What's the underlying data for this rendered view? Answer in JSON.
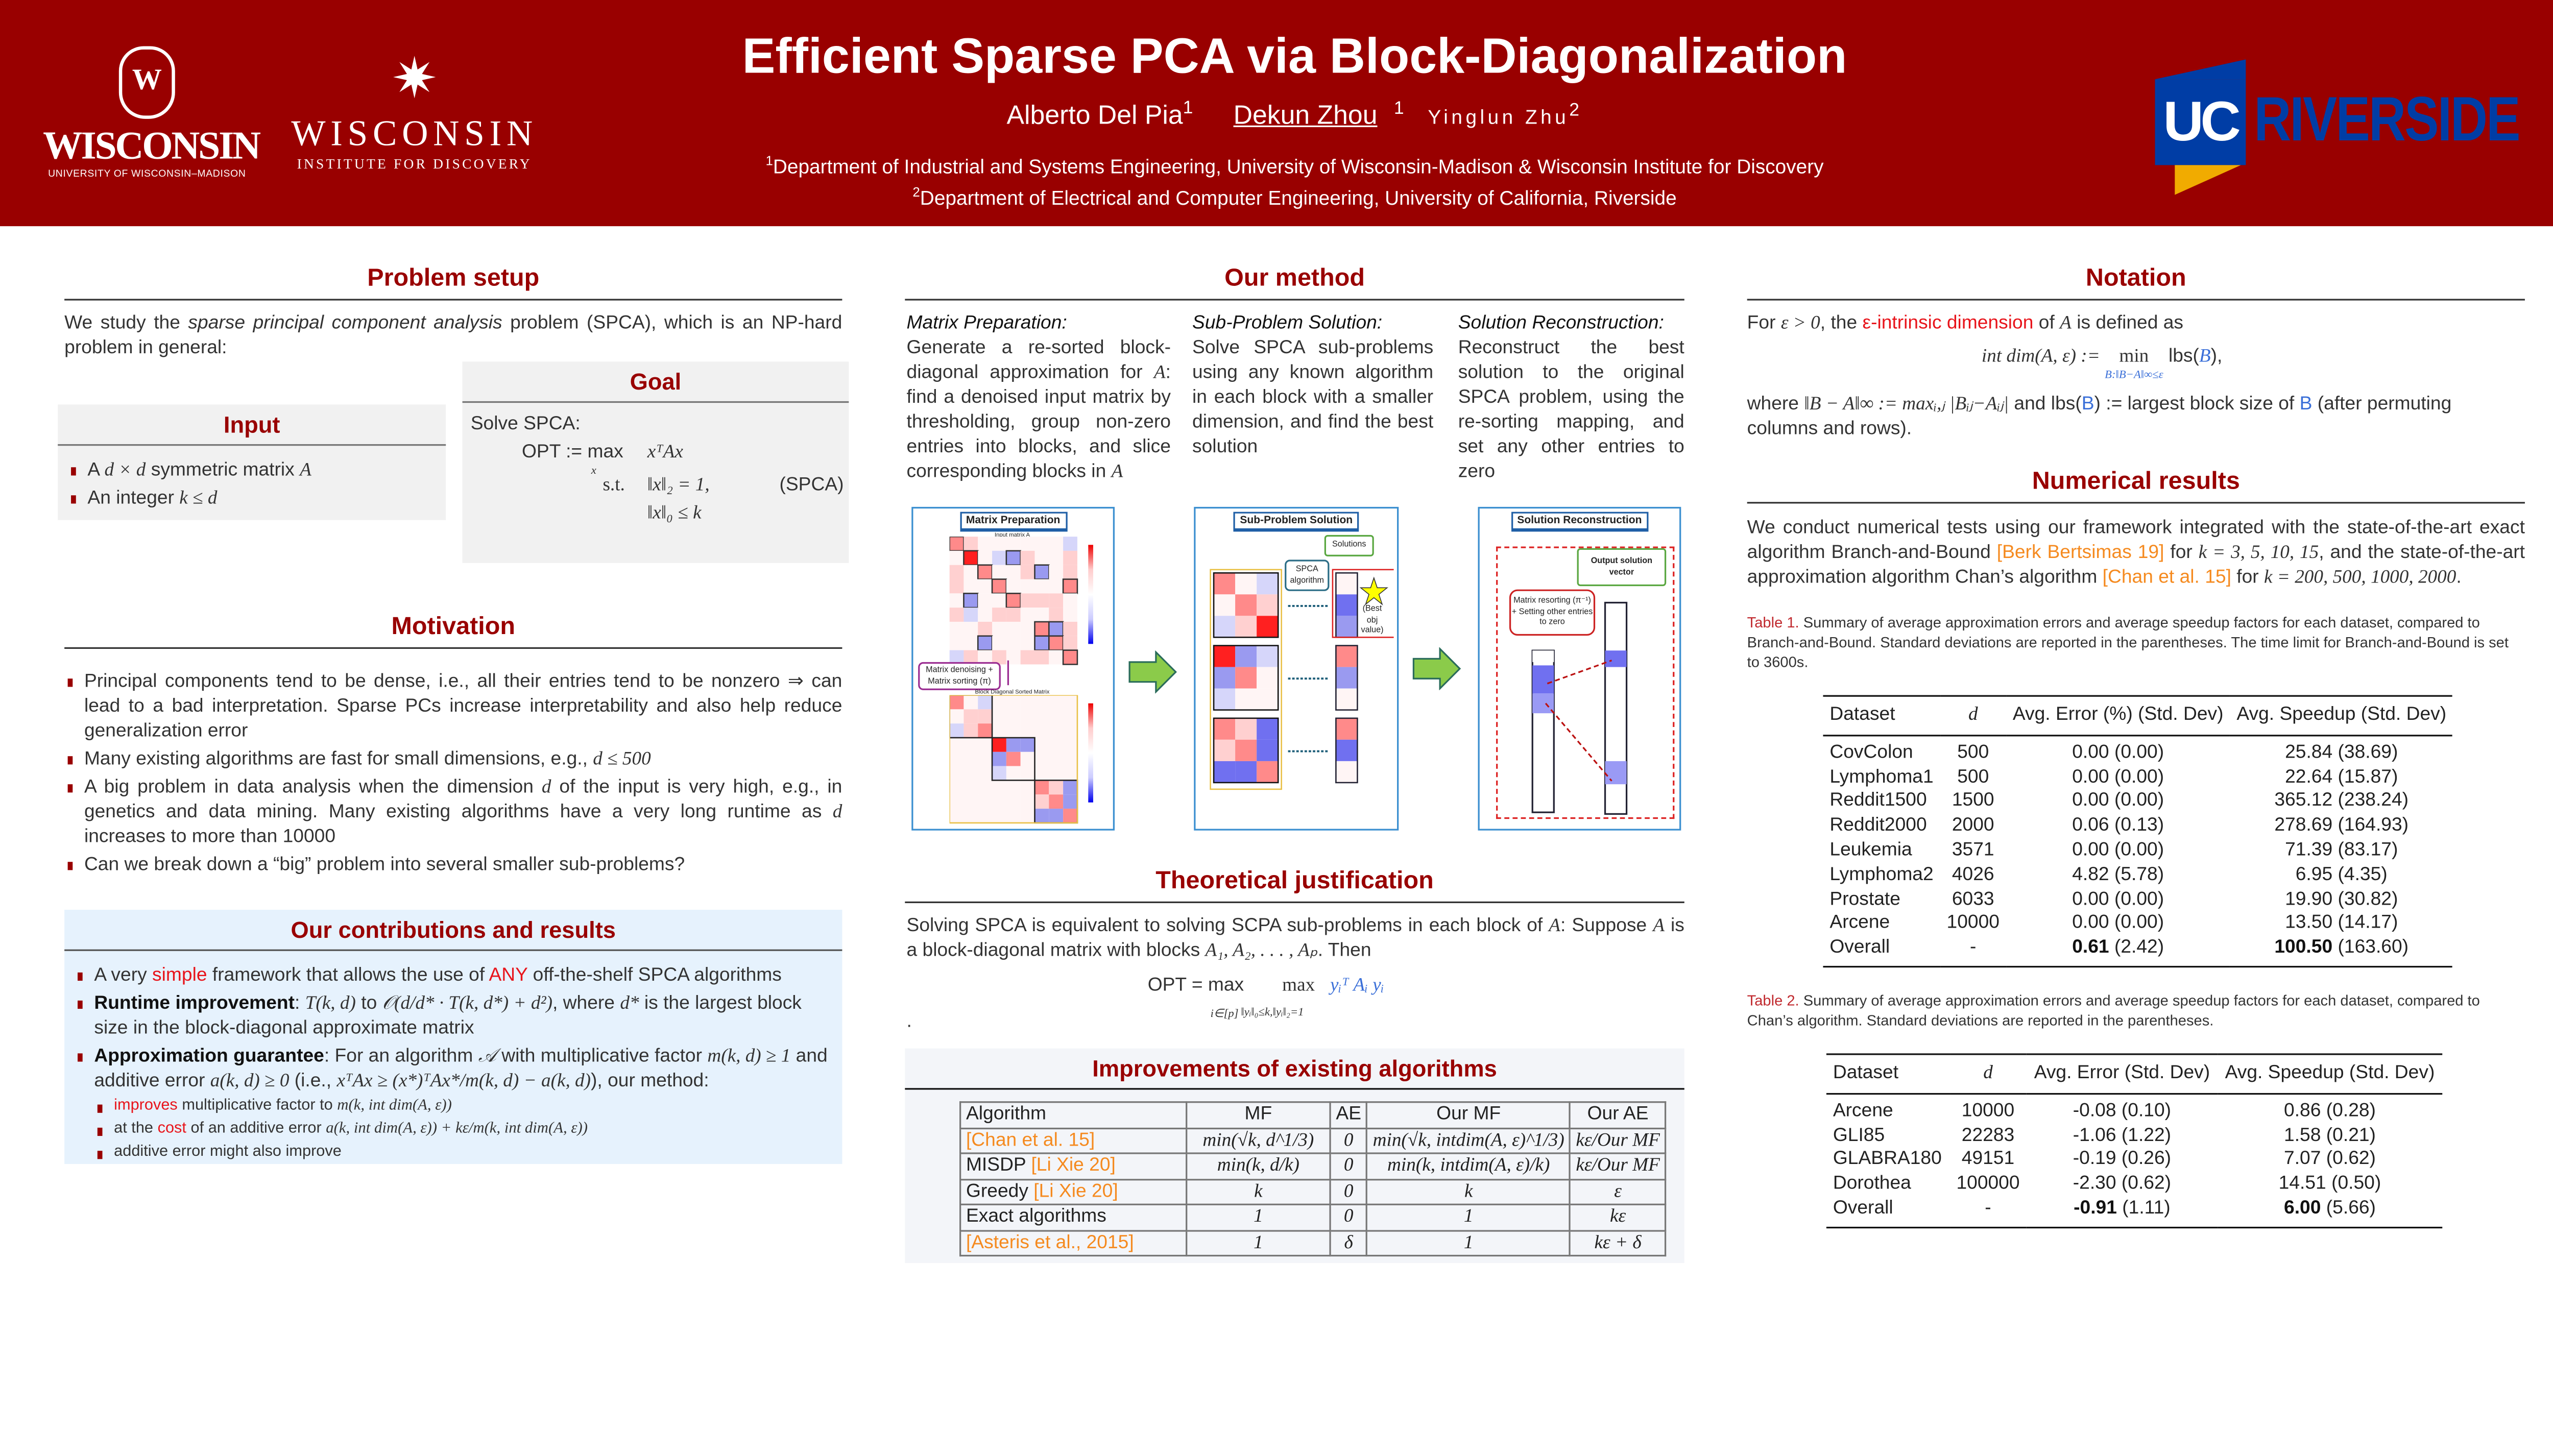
{
  "header": {
    "title": "Efficient Sparse PCA via Block-Diagonalization",
    "authors": [
      {
        "name": "Alberto Del Pia",
        "sup": "1"
      },
      {
        "name": "Dekun Zhou",
        "sup": "1"
      },
      {
        "name": "Yinglun Zhu",
        "sup": "2"
      }
    ],
    "affiliations": [
      {
        "sup": "1",
        "text": "Department of Industrial and Systems Engineering, University of Wisconsin-Madison & Wisconsin Institute for Discovery"
      },
      {
        "sup": "2",
        "text": "Department of Electrical and Computer Engineering, University of California, Riverside"
      }
    ],
    "logos": {
      "uw_crest": "W",
      "uw_name": "WISCONSIN",
      "uw_sub": "UNIVERSITY OF WISCONSIN–MADISON",
      "wid_star": "✷",
      "wid_name": "WISCONSIN",
      "wid_sub": "INSTITUTE FOR DISCOVERY",
      "ucr_uc": "UC",
      "ucr_name": "RIVERSIDE"
    },
    "colors": {
      "banner": "#990000",
      "ucr_blue": "#003da5",
      "ucr_gold": "#f1ab00"
    }
  },
  "problem_setup": {
    "title": "Problem setup",
    "intro": [
      {
        "t": "We study the "
      },
      {
        "t": "sparse principal component analysis",
        "c": "it"
      },
      {
        "t": " problem (SPCA), which is an NP-hard problem in general:"
      }
    ],
    "input": {
      "title": "Input",
      "items": [
        [
          {
            "t": "A "
          },
          {
            "t": "d × d",
            "c": "m"
          },
          {
            "t": " symmetric matrix "
          },
          {
            "t": "A",
            "c": "m"
          }
        ],
        [
          {
            "t": "An integer "
          },
          {
            "t": "k ≤ d",
            "c": "m"
          }
        ]
      ]
    },
    "goal": {
      "title": "Goal",
      "lead": "Solve SPCA:",
      "opt": "OPT := max",
      "opt_sub": "x",
      "objective": "xᵀAx",
      "st": "s.t.",
      "c1": "‖x‖₂ = 1,",
      "c2": "‖x‖₀ ≤ k",
      "tag": "(SPCA)"
    }
  },
  "motivation": {
    "title": "Motivation",
    "items": [
      [
        {
          "t": "Principal components tend to be dense, i.e., all their entries tend to be nonzero ⇒ can lead to a bad interpretation. Sparse PCs increase interpretability and also help reduce generalization error"
        }
      ],
      [
        {
          "t": "Many existing algorithms are fast for small dimensions, e.g., "
        },
        {
          "t": "d ≤ 500",
          "c": "m"
        }
      ],
      [
        {
          "t": "A big problem in data analysis when the dimension "
        },
        {
          "t": "d",
          "c": "m"
        },
        {
          "t": " of the input is very high, e.g., in genetics and data mining. Many existing algorithms have a very long runtime as "
        },
        {
          "t": "d",
          "c": "m"
        },
        {
          "t": " increases to more than 10000"
        }
      ],
      [
        {
          "t": "Can we break down a “big” problem into several smaller sub-problems?"
        }
      ]
    ]
  },
  "contributions": {
    "title": "Our contributions and results",
    "items": [
      [
        {
          "t": "A very "
        },
        {
          "t": "simple",
          "c": "red"
        },
        {
          "t": " framework that allows the use of "
        },
        {
          "t": "ANY",
          "c": "red"
        },
        {
          "t": " off-the-shelf SPCA algorithms"
        }
      ],
      [
        {
          "t": "Runtime improvement",
          "c": "bold"
        },
        {
          "t": ": "
        },
        {
          "t": "T(k, d)",
          "c": "m"
        },
        {
          "t": " to "
        },
        {
          "t": "𝒪(d/d* · T(k, d*) + d²)",
          "c": "m"
        },
        {
          "t": ", where "
        },
        {
          "t": "d*",
          "c": "m"
        },
        {
          "t": " is the largest block size in the block-diagonal approximate matrix"
        }
      ],
      [
        {
          "t": "Approximation guarantee",
          "c": "bold"
        },
        {
          "t": ": For an algorithm "
        },
        {
          "t": "𝒜",
          "c": "m"
        },
        {
          "t": " with multiplicative factor "
        },
        {
          "t": "m(k, d) ≥ 1",
          "c": "m"
        },
        {
          "t": " and additive error "
        },
        {
          "t": "a(k, d) ≥ 0",
          "c": "m"
        },
        {
          "t": " (i.e., "
        },
        {
          "t": "xᵀAx ≥ (x*)ᵀAx*/m(k, d) − a(k, d)",
          "c": "m"
        },
        {
          "t": "), our method:"
        }
      ]
    ],
    "subitems": [
      [
        {
          "t": "improves",
          "c": "red"
        },
        {
          "t": " multiplicative factor to "
        },
        {
          "t": "m(k, int dim(A, ε))",
          "c": "m"
        }
      ],
      [
        {
          "t": "at the "
        },
        {
          "t": "cost",
          "c": "red"
        },
        {
          "t": " of an additive error "
        },
        {
          "t": "a(k, int dim(A, ε)) + kε/m(k, int dim(A, ε))",
          "c": "m"
        }
      ],
      [
        {
          "t": "additive error might also improve"
        }
      ]
    ]
  },
  "method": {
    "title": "Our method",
    "columns": [
      {
        "heading": "Matrix Preparation:",
        "body": [
          {
            "t": "Generate a re-sorted block-diagonal approximation for "
          },
          {
            "t": "A",
            "c": "m"
          },
          {
            "t": ": find a denoised input matrix by thresholding, group non-zero entries into blocks, and slice corresponding blocks in "
          },
          {
            "t": "A",
            "c": "m"
          }
        ]
      },
      {
        "heading": "Sub-Problem Solution:",
        "body": [
          {
            "t": "Solve SPCA sub-problems using any known algorithm in each block with a smaller dimension, and find the best solution"
          }
        ]
      },
      {
        "heading": "Solution Reconstruction:",
        "body": [
          {
            "t": "Reconstruct the best solution to the original SPCA problem, using the re-sorting mapping, and set any other entries to zero"
          }
        ]
      }
    ],
    "figure": {
      "panel1_title": "Matrix Preparation",
      "panel1_input_label": "Input matrix A",
      "panel1_step": "Matrix denoising + Matrix sorting (π)",
      "panel1_sorted_label": "Block Diagonal Sorted Matrix",
      "panel2_title": "Sub-Problem Solution",
      "panel2_solutions": "Solutions",
      "panel2_algorithm": "SPCA algorithm",
      "panel2_best": "(Best obj value)",
      "panel3_title": "Solution Reconstruction",
      "panel3_output": "Output solution vector",
      "panel3_resort": "Matrix resorting (π⁻¹) + Setting other entries to zero"
    }
  },
  "theory": {
    "title": "Theoretical justification",
    "text": [
      {
        "t": "Solving SPCA is equivalent to solving SCPA sub-problems in each block of "
      },
      {
        "t": "A",
        "c": "m"
      },
      {
        "t": ": Suppose "
      },
      {
        "t": "A",
        "c": "m"
      },
      {
        "t": " is a block-diagonal matrix with blocks "
      },
      {
        "t": "A₁, A₂, . . . , Aₚ",
        "c": "m"
      },
      {
        "t": ". Then"
      }
    ],
    "formula_lhs": "OPT = max",
    "formula_sub1": "i∈[p]",
    "formula_max2": "max",
    "formula_sub2": "‖yᵢ‖₀≤k,‖yᵢ‖₂=1",
    "formula_rhs": "yᵢᵀ Aᵢ yᵢ",
    "trailing": "."
  },
  "improvements": {
    "title": "Improvements of existing algorithms",
    "headers": [
      "Algorithm",
      "MF",
      "AE",
      "Our MF",
      "Our AE"
    ],
    "rows": [
      {
        "name": "",
        "ref": "[Chan et al. 15]",
        "mf": "min(√k, d^1/3)",
        "ae": "0",
        "our_mf": "min(√k, intdim(A, ε)^1/3)",
        "our_ae": "kε/Our MF"
      },
      {
        "name": "MISDP ",
        "ref": "[Li Xie 20]",
        "mf": "min(k, d/k)",
        "ae": "0",
        "our_mf": "min(k, intdim(A, ε)/k)",
        "our_ae": "kε/Our MF"
      },
      {
        "name": "Greedy ",
        "ref": "[Li Xie 20]",
        "mf": "k",
        "ae": "0",
        "our_mf": "k",
        "our_ae": "ε"
      },
      {
        "name": "Exact algorithms",
        "ref": "",
        "mf": "1",
        "ae": "0",
        "our_mf": "1",
        "our_ae": "kε"
      },
      {
        "name": "",
        "ref": "[Asteris et al., 2015]",
        "mf": "1",
        "ae": "δ",
        "our_mf": "1",
        "our_ae": "kε + δ"
      }
    ]
  },
  "notation": {
    "title": "Notation",
    "intro": [
      {
        "t": "For "
      },
      {
        "t": "ε > 0",
        "c": "m"
      },
      {
        "t": ", the "
      },
      {
        "t": "ε-intrinsic dimension",
        "c": "red"
      },
      {
        "t": " of "
      },
      {
        "t": "A",
        "c": "m"
      },
      {
        "t": " is defined as"
      }
    ],
    "def_lhs": "int dim(A, ε) := ",
    "def_min": "min",
    "def_sub": "B:‖B−A‖∞≤ε",
    "def_rhs_pre": "lbs(",
    "def_rhs_b": "B",
    "def_rhs_post": "),",
    "where": [
      {
        "t": "where "
      },
      {
        "t": "‖B − A‖∞ := max",
        "c": "m"
      },
      {
        "t": "ᵢ,ⱼ",
        "c": "m"
      },
      {
        "t": " |Bᵢⱼ−Aᵢⱼ|",
        "c": "m"
      },
      {
        "t": " and lbs("
      },
      {
        "t": "B",
        "c": "blue"
      },
      {
        "t": ") := largest block size of "
      },
      {
        "t": "B",
        "c": "blue"
      },
      {
        "t": " (after permuting columns and rows)."
      }
    ]
  },
  "numerical": {
    "title": "Numerical results",
    "intro": [
      {
        "t": "We conduct numerical tests using our framework integrated with the state-of-the-art exact algorithm Branch-and-Bound "
      },
      {
        "t": "[Berk Bertsimas 19]",
        "c": "orange"
      },
      {
        "t": " for "
      },
      {
        "t": "k = 3, 5, 10, 15",
        "c": "m"
      },
      {
        "t": ", and the state-of-the-art approximation algorithm Chan’s algorithm "
      },
      {
        "t": "[Chan et al. 15]",
        "c": "orange"
      },
      {
        "t": " for "
      },
      {
        "t": "k = 200, 500, 1000, 2000",
        "c": "m"
      },
      {
        "t": "."
      }
    ],
    "table1": {
      "label": "Table 1.",
      "caption": " Summary of average approximation errors and average speedup factors for each dataset, compared to Branch-and-Bound. Standard deviations are reported in the parentheses. The time limit for Branch-and-Bound is set to 3600s.",
      "headers": [
        "Dataset",
        "d",
        "Avg. Error (%) (Std. Dev)",
        "Avg. Speedup (Std. Dev)"
      ],
      "rows": [
        {
          "dataset": "CovColon",
          "d": "500",
          "err": "0.00",
          "err_sd": "(0.00)",
          "spd": "25.84",
          "spd_sd": "(38.69)"
        },
        {
          "dataset": "Lymphoma1",
          "d": "500",
          "err": "0.00",
          "err_sd": "(0.00)",
          "spd": "22.64",
          "spd_sd": "(15.87)"
        },
        {
          "dataset": "Reddit1500",
          "d": "1500",
          "err": "0.00",
          "err_sd": "(0.00)",
          "spd": "365.12",
          "spd_sd": "(238.24)"
        },
        {
          "dataset": "Reddit2000",
          "d": "2000",
          "err": "0.06",
          "err_sd": "(0.13)",
          "spd": "278.69",
          "spd_sd": "(164.93)"
        },
        {
          "dataset": "Leukemia",
          "d": "3571",
          "err": "0.00",
          "err_sd": "(0.00)",
          "spd": "71.39",
          "spd_sd": "(83.17)"
        },
        {
          "dataset": "Lymphoma2",
          "d": "4026",
          "err": "4.82",
          "err_sd": "(5.78)",
          "spd": "6.95",
          "spd_sd": "(4.35)"
        },
        {
          "dataset": "Prostate",
          "d": "6033",
          "err": "0.00",
          "err_sd": "(0.00)",
          "spd": "19.90",
          "spd_sd": "(30.82)"
        },
        {
          "dataset": "Arcene",
          "d": "10000",
          "err": "0.00",
          "err_sd": "(0.00)",
          "spd": "13.50",
          "spd_sd": "(14.17)"
        },
        {
          "dataset": "Overall",
          "d": "-",
          "err": "0.61",
          "err_sd": "(2.42)",
          "spd": "100.50",
          "spd_sd": "(163.60)",
          "bold": true
        }
      ]
    },
    "table2": {
      "label": "Table 2.",
      "caption": " Summary of average approximation errors and average speedup factors for each dataset, compared to Chan’s algorithm. Standard deviations are reported in the parentheses.",
      "headers": [
        "Dataset",
        "d",
        "Avg. Error (Std. Dev)",
        "Avg. Speedup (Std. Dev)"
      ],
      "rows": [
        {
          "dataset": "Arcene",
          "d": "10000",
          "err": "-0.08",
          "err_sd": "(0.10)",
          "spd": "0.86",
          "spd_sd": "(0.28)"
        },
        {
          "dataset": "GLI85",
          "d": "22283",
          "err": "-1.06",
          "err_sd": "(1.22)",
          "spd": "1.58",
          "spd_sd": "(0.21)"
        },
        {
          "dataset": "GLABRA180",
          "d": "49151",
          "err": "-0.19",
          "err_sd": "(0.26)",
          "spd": "7.07",
          "spd_sd": "(0.62)"
        },
        {
          "dataset": "Dorothea",
          "d": "100000",
          "err": "-2.30",
          "err_sd": "(0.62)",
          "spd": "14.51",
          "spd_sd": "(0.50)"
        },
        {
          "dataset": "Overall",
          "d": "-",
          "err": "-0.91",
          "err_sd": "(1.11)",
          "spd": "6.00",
          "spd_sd": "(5.66)",
          "bold": true
        }
      ]
    }
  }
}
